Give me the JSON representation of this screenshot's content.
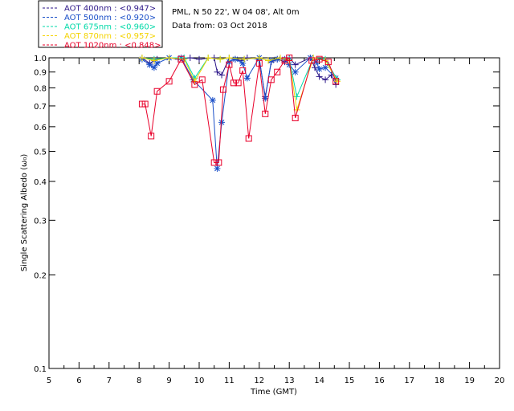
{
  "info": {
    "site": "PML, N 50 22', W 04 08', Alt 0m",
    "date": "Data from: 03 Oct 2018"
  },
  "chart_data": {
    "type": "line",
    "xlabel": "Time (GMT)",
    "ylabel": "Single Scattering Albedo (ω₀)",
    "xlim": [
      5,
      20
    ],
    "ylim": [
      0.1,
      1.0
    ],
    "y_scale": "log",
    "x_ticks": [
      5,
      6,
      7,
      8,
      9,
      10,
      11,
      12,
      13,
      14,
      15,
      16,
      17,
      18,
      19,
      20
    ],
    "y_ticks": [
      {
        "value": 0.1,
        "label": "0.1"
      },
      {
        "value": 0.2,
        "label": "0.2"
      },
      {
        "value": 0.3,
        "label": "0.3"
      },
      {
        "value": 0.4,
        "label": "0.4"
      },
      {
        "value": 0.5,
        "label": "0.5"
      },
      {
        "value": 0.6,
        "label": "0.6"
      },
      {
        "value": 0.7,
        "label": "0.7"
      },
      {
        "value": 0.8,
        "label": "0.8"
      },
      {
        "value": 0.9,
        "label": "0.9"
      },
      {
        "value": 1.0,
        "label": "1.0"
      }
    ],
    "grid": false,
    "legend_position": "top-left-outside",
    "series": [
      {
        "name": "AOT  400nm : <0.947>",
        "color": "#2b1688",
        "marker": "plus",
        "x": [
          8.1,
          8.35,
          8.5,
          8.6,
          9.0,
          9.3,
          9.7,
          10.0,
          10.5,
          10.6,
          10.75,
          11.0,
          11.2,
          11.4,
          11.6,
          12.0,
          12.2,
          12.4,
          12.6,
          12.85,
          13.0,
          13.2,
          13.7,
          13.85,
          14.0,
          14.2,
          14.4,
          14.55
        ],
        "y": [
          1.0,
          0.96,
          0.98,
          0.99,
          1.0,
          0.99,
          1.0,
          0.99,
          1.0,
          0.9,
          0.88,
          1.0,
          0.99,
          0.98,
          1.0,
          0.99,
          0.75,
          0.97,
          0.99,
          0.97,
          1.0,
          0.95,
          1.0,
          0.93,
          0.87,
          0.85,
          0.88,
          0.82
        ]
      },
      {
        "name": "AOT  500nm : <0.920>",
        "color": "#1a4fc8",
        "marker": "asterisk",
        "x": [
          8.1,
          8.35,
          8.5,
          8.6,
          9.0,
          9.4,
          9.8,
          10.45,
          10.6,
          10.75,
          11.0,
          11.2,
          11.45,
          11.6,
          12.0,
          12.2,
          12.4,
          12.6,
          12.85,
          13.0,
          13.2,
          13.7,
          13.9,
          14.0,
          14.2,
          14.55
        ],
        "y": [
          0.99,
          0.95,
          0.93,
          0.96,
          1.0,
          1.0,
          0.85,
          0.73,
          0.44,
          0.62,
          0.97,
          0.99,
          0.96,
          0.86,
          1.0,
          0.74,
          0.98,
          0.99,
          0.99,
          0.95,
          0.9,
          1.0,
          0.97,
          0.92,
          0.93,
          0.86
        ]
      },
      {
        "name": "AOT  675nm : <0.960>",
        "color": "#00d9a8",
        "marker": "plus",
        "x": [
          8.1,
          8.5,
          9.0,
          9.5,
          9.85,
          10.3,
          10.7,
          11.0,
          11.5,
          12.0,
          12.3,
          12.7,
          13.0,
          13.25,
          13.8,
          14.2,
          14.6
        ],
        "y": [
          1.0,
          0.99,
          1.0,
          1.0,
          0.86,
          1.0,
          0.99,
          1.0,
          0.99,
          1.0,
          0.98,
          1.0,
          0.99,
          0.75,
          1.0,
          0.99,
          0.85
        ]
      },
      {
        "name": "AOT  870nm : <0.957>",
        "color": "#f4d300",
        "marker": "plus",
        "x": [
          8.1,
          8.5,
          9.0,
          9.5,
          9.85,
          10.3,
          10.7,
          11.0,
          11.5,
          12.0,
          12.3,
          12.7,
          13.0,
          13.25,
          13.8,
          14.2,
          14.6
        ],
        "y": [
          1.0,
          0.98,
          1.0,
          0.99,
          0.84,
          1.0,
          0.99,
          1.0,
          0.99,
          1.0,
          0.98,
          1.0,
          0.98,
          0.68,
          1.0,
          0.98,
          0.84
        ]
      },
      {
        "name": "AOT 1020nm : <0.848>",
        "color": "#e8002a",
        "marker": "square",
        "x": [
          8.1,
          8.2,
          8.4,
          8.6,
          9.0,
          9.4,
          9.85,
          10.1,
          10.5,
          10.65,
          10.8,
          11.0,
          11.15,
          11.3,
          11.45,
          11.65,
          12.0,
          12.2,
          12.4,
          12.6,
          12.85,
          13.0,
          13.2,
          13.75,
          14.0,
          14.3,
          14.55
        ],
        "y": [
          0.71,
          0.71,
          0.56,
          0.78,
          0.84,
          0.99,
          0.82,
          0.85,
          0.46,
          0.46,
          0.79,
          0.95,
          0.83,
          0.83,
          0.91,
          0.55,
          0.96,
          0.66,
          0.85,
          0.9,
          0.98,
          1.0,
          0.64,
          0.98,
          0.99,
          0.97,
          0.84
        ]
      }
    ]
  }
}
